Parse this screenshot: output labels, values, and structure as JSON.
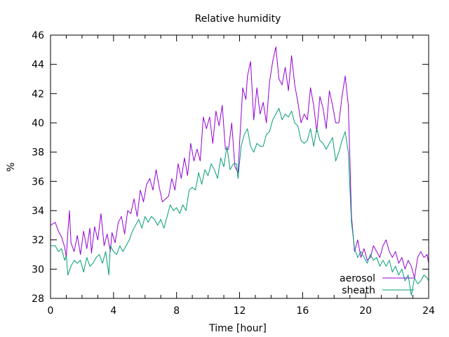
{
  "chart_data": {
    "type": "line",
    "title": "Relative humidity",
    "xlabel": "Time [hour]",
    "ylabel": "%",
    "xlim": [
      0,
      24
    ],
    "ylim": [
      28,
      46
    ],
    "xticks": [
      0,
      4,
      8,
      12,
      16,
      20,
      24
    ],
    "xticks_minor_step": 1,
    "yticks": [
      28,
      30,
      32,
      34,
      36,
      38,
      40,
      42,
      44,
      46
    ],
    "grid": false,
    "legend_position": "bottom-right",
    "series": [
      {
        "name": "aerosol",
        "color": "#9400d3",
        "points": [
          [
            0.0,
            33.0
          ],
          [
            0.3,
            33.2
          ],
          [
            0.5,
            32.6
          ],
          [
            0.7,
            32.2
          ],
          [
            0.9,
            31.5
          ],
          [
            1.0,
            30.8
          ],
          [
            1.1,
            32.5
          ],
          [
            1.2,
            34.0
          ],
          [
            1.3,
            31.8
          ],
          [
            1.5,
            31.2
          ],
          [
            1.7,
            32.3
          ],
          [
            1.9,
            31.0
          ],
          [
            2.1,
            32.6
          ],
          [
            2.3,
            31.4
          ],
          [
            2.5,
            32.8
          ],
          [
            2.6,
            31.1
          ],
          [
            2.8,
            32.9
          ],
          [
            3.0,
            32.0
          ],
          [
            3.2,
            33.8
          ],
          [
            3.4,
            31.6
          ],
          [
            3.6,
            32.4
          ],
          [
            3.8,
            31.2
          ],
          [
            3.9,
            32.5
          ],
          [
            4.1,
            31.8
          ],
          [
            4.3,
            33.2
          ],
          [
            4.5,
            33.6
          ],
          [
            4.7,
            32.4
          ],
          [
            4.9,
            34.0
          ],
          [
            5.1,
            33.8
          ],
          [
            5.3,
            34.8
          ],
          [
            5.5,
            33.6
          ],
          [
            5.7,
            35.4
          ],
          [
            5.9,
            34.6
          ],
          [
            6.1,
            35.8
          ],
          [
            6.3,
            36.2
          ],
          [
            6.5,
            35.4
          ],
          [
            6.7,
            36.8
          ],
          [
            6.9,
            35.6
          ],
          [
            7.1,
            34.6
          ],
          [
            7.3,
            34.8
          ],
          [
            7.5,
            35.0
          ],
          [
            7.7,
            36.2
          ],
          [
            7.9,
            35.4
          ],
          [
            8.1,
            37.2
          ],
          [
            8.3,
            36.2
          ],
          [
            8.5,
            37.6
          ],
          [
            8.7,
            36.4
          ],
          [
            8.9,
            38.6
          ],
          [
            9.1,
            37.4
          ],
          [
            9.3,
            38.2
          ],
          [
            9.5,
            37.4
          ],
          [
            9.7,
            40.4
          ],
          [
            9.9,
            39.6
          ],
          [
            10.1,
            40.4
          ],
          [
            10.3,
            38.6
          ],
          [
            10.5,
            40.8
          ],
          [
            10.7,
            39.8
          ],
          [
            10.9,
            41.2
          ],
          [
            11.1,
            38.2
          ],
          [
            11.3,
            38.2
          ],
          [
            11.5,
            40.0
          ],
          [
            11.7,
            37.0
          ],
          [
            11.9,
            36.6
          ],
          [
            12.0,
            38.6
          ],
          [
            12.2,
            42.4
          ],
          [
            12.4,
            41.6
          ],
          [
            12.5,
            43.2
          ],
          [
            12.7,
            44.2
          ],
          [
            12.9,
            40.2
          ],
          [
            13.1,
            42.4
          ],
          [
            13.3,
            40.6
          ],
          [
            13.5,
            41.4
          ],
          [
            13.7,
            40.0
          ],
          [
            13.9,
            42.8
          ],
          [
            14.1,
            44.2
          ],
          [
            14.3,
            45.2
          ],
          [
            14.5,
            43.0
          ],
          [
            14.7,
            42.6
          ],
          [
            14.9,
            43.8
          ],
          [
            15.1,
            42.2
          ],
          [
            15.3,
            44.6
          ],
          [
            15.5,
            42.6
          ],
          [
            15.7,
            41.4
          ],
          [
            15.9,
            40.0
          ],
          [
            16.1,
            40.6
          ],
          [
            16.3,
            40.2
          ],
          [
            16.5,
            42.4
          ],
          [
            16.7,
            41.2
          ],
          [
            16.9,
            39.4
          ],
          [
            17.1,
            41.8
          ],
          [
            17.3,
            41.0
          ],
          [
            17.5,
            39.6
          ],
          [
            17.7,
            42.2
          ],
          [
            17.9,
            41.2
          ],
          [
            18.1,
            40.0
          ],
          [
            18.3,
            40.0
          ],
          [
            18.5,
            41.8
          ],
          [
            18.7,
            43.2
          ],
          [
            18.9,
            41.2
          ],
          [
            19.0,
            37.6
          ],
          [
            19.1,
            33.6
          ],
          [
            19.3,
            31.2
          ],
          [
            19.5,
            32.0
          ],
          [
            19.7,
            30.8
          ],
          [
            19.9,
            31.4
          ],
          [
            20.1,
            30.6
          ],
          [
            20.3,
            30.8
          ],
          [
            20.5,
            31.6
          ],
          [
            20.7,
            31.2
          ],
          [
            20.9,
            30.8
          ],
          [
            21.1,
            31.6
          ],
          [
            21.3,
            32.0
          ],
          [
            21.5,
            31.2
          ],
          [
            21.7,
            30.8
          ],
          [
            21.9,
            31.2
          ],
          [
            22.1,
            30.4
          ],
          [
            22.3,
            30.8
          ],
          [
            22.5,
            30.0
          ],
          [
            22.7,
            30.6
          ],
          [
            22.9,
            30.2
          ],
          [
            23.1,
            29.4
          ],
          [
            23.3,
            30.8
          ],
          [
            23.5,
            31.2
          ],
          [
            23.7,
            30.8
          ],
          [
            23.9,
            31.0
          ],
          [
            24.0,
            30.4
          ]
        ]
      },
      {
        "name": "sheath",
        "color": "#009e73",
        "points": [
          [
            0.0,
            31.6
          ],
          [
            0.3,
            31.6
          ],
          [
            0.5,
            31.2
          ],
          [
            0.7,
            31.4
          ],
          [
            0.9,
            30.6
          ],
          [
            1.0,
            30.9
          ],
          [
            1.1,
            29.6
          ],
          [
            1.3,
            30.2
          ],
          [
            1.5,
            30.6
          ],
          [
            1.7,
            30.4
          ],
          [
            1.9,
            30.6
          ],
          [
            2.1,
            29.8
          ],
          [
            2.3,
            30.8
          ],
          [
            2.5,
            30.2
          ],
          [
            2.7,
            30.4
          ],
          [
            2.9,
            30.8
          ],
          [
            3.1,
            31.0
          ],
          [
            3.3,
            30.4
          ],
          [
            3.5,
            31.2
          ],
          [
            3.7,
            29.6
          ],
          [
            3.8,
            31.6
          ],
          [
            4.0,
            31.2
          ],
          [
            4.2,
            31.0
          ],
          [
            4.4,
            31.6
          ],
          [
            4.6,
            31.2
          ],
          [
            4.8,
            31.6
          ],
          [
            5.0,
            32.0
          ],
          [
            5.2,
            32.6
          ],
          [
            5.4,
            33.0
          ],
          [
            5.6,
            33.4
          ],
          [
            5.8,
            32.8
          ],
          [
            6.0,
            33.6
          ],
          [
            6.2,
            33.2
          ],
          [
            6.4,
            33.6
          ],
          [
            6.6,
            33.4
          ],
          [
            6.8,
            33.0
          ],
          [
            7.0,
            33.4
          ],
          [
            7.2,
            32.8
          ],
          [
            7.4,
            33.6
          ],
          [
            7.6,
            34.4
          ],
          [
            7.8,
            34.0
          ],
          [
            8.0,
            34.2
          ],
          [
            8.2,
            33.8
          ],
          [
            8.4,
            34.4
          ],
          [
            8.6,
            34.0
          ],
          [
            8.8,
            35.4
          ],
          [
            9.0,
            35.6
          ],
          [
            9.2,
            35.4
          ],
          [
            9.4,
            36.6
          ],
          [
            9.6,
            35.8
          ],
          [
            9.8,
            36.8
          ],
          [
            10.0,
            36.4
          ],
          [
            10.2,
            37.2
          ],
          [
            10.4,
            36.8
          ],
          [
            10.6,
            36.2
          ],
          [
            10.8,
            37.6
          ],
          [
            11.0,
            37.0
          ],
          [
            11.2,
            38.4
          ],
          [
            11.4,
            36.8
          ],
          [
            11.6,
            37.2
          ],
          [
            11.8,
            37.2
          ],
          [
            11.9,
            36.2
          ],
          [
            12.1,
            38.4
          ],
          [
            12.3,
            39.2
          ],
          [
            12.5,
            39.6
          ],
          [
            12.7,
            38.4
          ],
          [
            12.9,
            38.0
          ],
          [
            13.1,
            38.6
          ],
          [
            13.3,
            38.4
          ],
          [
            13.5,
            38.4
          ],
          [
            13.7,
            39.2
          ],
          [
            13.9,
            39.4
          ],
          [
            14.1,
            40.2
          ],
          [
            14.3,
            40.6
          ],
          [
            14.5,
            41.0
          ],
          [
            14.7,
            40.2
          ],
          [
            14.9,
            40.6
          ],
          [
            15.1,
            40.4
          ],
          [
            15.3,
            40.8
          ],
          [
            15.5,
            40.0
          ],
          [
            15.7,
            39.8
          ],
          [
            15.9,
            38.8
          ],
          [
            16.1,
            38.6
          ],
          [
            16.3,
            38.8
          ],
          [
            16.5,
            39.6
          ],
          [
            16.7,
            38.4
          ],
          [
            16.9,
            39.6
          ],
          [
            17.1,
            38.8
          ],
          [
            17.3,
            38.6
          ],
          [
            17.5,
            38.2
          ],
          [
            17.7,
            38.6
          ],
          [
            17.9,
            39.0
          ],
          [
            18.1,
            37.4
          ],
          [
            18.3,
            38.0
          ],
          [
            18.5,
            38.8
          ],
          [
            18.7,
            39.4
          ],
          [
            18.9,
            38.0
          ],
          [
            19.0,
            35.6
          ],
          [
            19.1,
            33.2
          ],
          [
            19.3,
            31.4
          ],
          [
            19.5,
            30.8
          ],
          [
            19.7,
            31.2
          ],
          [
            19.9,
            30.8
          ],
          [
            20.1,
            30.4
          ],
          [
            20.3,
            31.0
          ],
          [
            20.5,
            30.6
          ],
          [
            20.7,
            30.8
          ],
          [
            20.9,
            30.2
          ],
          [
            21.1,
            30.6
          ],
          [
            21.3,
            30.2
          ],
          [
            21.5,
            30.6
          ],
          [
            21.7,
            29.8
          ],
          [
            21.9,
            30.2
          ],
          [
            22.1,
            29.6
          ],
          [
            22.3,
            30.0
          ],
          [
            22.5,
            29.2
          ],
          [
            22.7,
            29.6
          ],
          [
            22.9,
            28.2
          ],
          [
            23.1,
            29.4
          ],
          [
            23.3,
            29.0
          ],
          [
            23.5,
            29.2
          ],
          [
            23.7,
            29.6
          ],
          [
            23.9,
            29.4
          ],
          [
            24.0,
            29.2
          ]
        ]
      }
    ]
  }
}
